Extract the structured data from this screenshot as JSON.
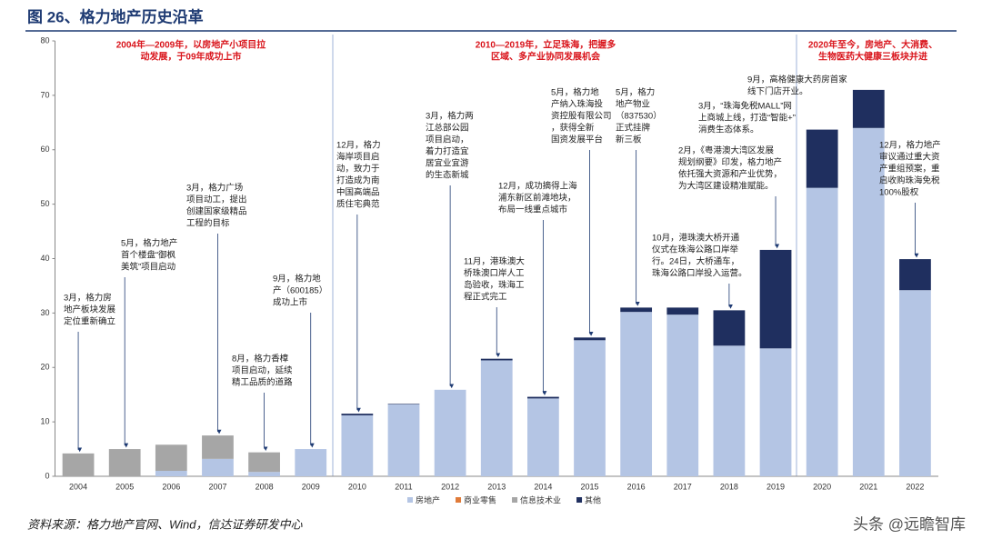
{
  "chart_data": {
    "type": "bar",
    "stacked": true,
    "title": "图 26、格力地产历史沿革",
    "categories": [
      "2004",
      "2005",
      "2006",
      "2007",
      "2008",
      "2009",
      "2010",
      "2011",
      "2012",
      "2013",
      "2014",
      "2015",
      "2016",
      "2017",
      "2018",
      "2019",
      "2020",
      "2021",
      "2022"
    ],
    "series": [
      {
        "name": "房地产",
        "color": "#b4c5e4",
        "values": [
          0,
          0,
          1.0,
          3.2,
          0.8,
          5.0,
          11.2,
          13.2,
          15.9,
          21.3,
          14.3,
          25.0,
          30.2,
          29.7,
          24.0,
          23.5,
          53.0,
          64.0,
          34.2
        ]
      },
      {
        "name": "商业零售",
        "color": "#e07b39",
        "values": [
          0,
          0,
          0,
          0,
          0,
          0,
          0,
          0,
          0,
          0,
          0,
          0,
          0,
          0,
          0,
          0,
          0,
          0,
          0
        ]
      },
      {
        "name": "信息技术业",
        "color": "#a6a6a6",
        "values": [
          4.2,
          5.0,
          4.8,
          4.3,
          3.6,
          0,
          0,
          0,
          0,
          0,
          0,
          0,
          0,
          0,
          0,
          0,
          0,
          0,
          0
        ]
      },
      {
        "name": "其他",
        "color": "#1f2f5f",
        "values": [
          0,
          0,
          0,
          0,
          0,
          0,
          0.3,
          0.1,
          0,
          0.3,
          0.3,
          0.5,
          0.8,
          1.3,
          6.5,
          18.1,
          10.7,
          7.0,
          5.7
        ]
      }
    ],
    "ylim": [
      0,
      80
    ],
    "yticks": [
      0,
      10,
      20,
      30,
      40,
      50,
      60,
      70,
      80
    ],
    "legend": "bottom",
    "eras": [
      {
        "lines": [
          "2004年—2009年，以房地产小项目拉",
          "动发展，于09年成功上市"
        ]
      },
      {
        "lines": [
          "2010—2019年，立足珠海，把握多",
          "区域、多产业协同发展机会"
        ]
      },
      {
        "lines": [
          "2020年至今，房地产、大消费、",
          "生物医药大健康三板块并进"
        ]
      }
    ],
    "annotations": [
      {
        "lines": [
          "3月，格力房",
          "地产板块发展",
          "定位重新确立"
        ]
      },
      {
        "lines": [
          "5月，格力地产",
          "首个楼盘“御枫",
          "美筑”项目启动"
        ]
      },
      {
        "lines": [
          "3月，格力广场",
          "项目动工，提出",
          "创建国家级精品",
          "工程的目标"
        ]
      },
      {
        "lines": [
          "8月，格力香樟",
          "项目启动，延续",
          "精工品质的道路"
        ]
      },
      {
        "lines": [
          "9月，格力地",
          "产（600185）",
          "成功上市"
        ]
      },
      {
        "lines": [
          "12月，格力",
          "海岸项目启",
          "动，致力于",
          "打造成为南",
          "中国高端品",
          "质住宅典范"
        ]
      },
      {
        "lines": [
          "3月，格力两",
          "江总部公园",
          "项目启动，",
          "着力打造宜",
          "居宜业宜游",
          "的生态新城"
        ]
      },
      {
        "lines": [
          "12月，成功摘得上海",
          "浦东新区前滩地块，",
          "布局一线重点城市"
        ]
      },
      {
        "lines": [
          "11月，港珠澳大",
          "桥珠澳口岸人工",
          "岛验收，珠海工",
          "程正式完工"
        ]
      },
      {
        "lines": [
          "5月，格力地",
          "产纳入珠海投",
          "资控股有限公司",
          "，获得全新",
          "国资发展平台"
        ]
      },
      {
        "lines": [
          "5月，格力",
          "地产物业",
          "（837530）",
          "正式挂牌",
          "新三板"
        ]
      },
      {
        "lines": [
          "10月，港珠澳大桥开通",
          "仪式在珠海公路口岸举",
          "行。24日，大桥通车，",
          "珠海公路口岸投入运营。"
        ]
      },
      {
        "lines": [
          "2月，《粤港澳大湾区发展",
          "规划纲要》印发，格力地产",
          "依托强大资源和产业优势，",
          "为大湾区建设精准赋能。"
        ]
      },
      {
        "lines": [
          "3月，“珠海免税MALL”网",
          "上商城上线，打造“智能+”",
          "消费生态体系。"
        ]
      },
      {
        "lines": [
          "9月，高格健康大药房首家",
          "线下门店开业。"
        ]
      },
      {
        "lines": [
          "12月，格力地产",
          "审议通过重大资",
          "产重组预案，重",
          "启收购珠海免税",
          "100%股权"
        ]
      }
    ],
    "source": "资料来源：格力地产官网、Wind，信达证券研发中心",
    "watermark": "头条 @远瞻智库"
  }
}
